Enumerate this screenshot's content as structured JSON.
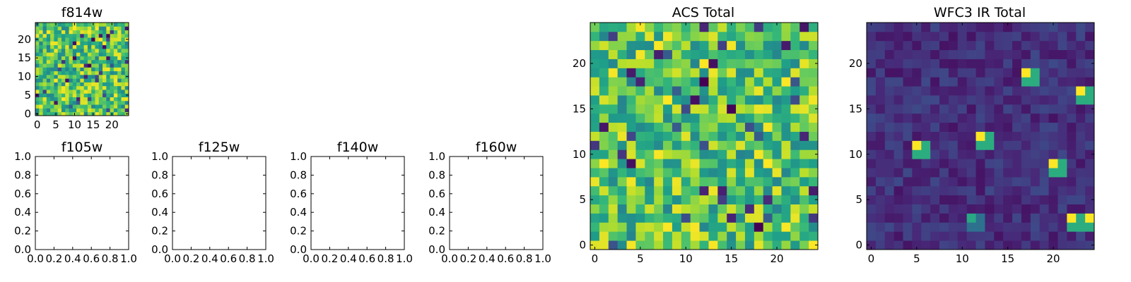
{
  "chart_data": [
    {
      "type": "heatmap",
      "title": "f814w",
      "grid_size": 25,
      "colormap": "viridis",
      "x_ticks": [
        "0",
        "5",
        "10",
        "15",
        "20"
      ],
      "y_ticks": [
        "0",
        "5",
        "10",
        "15",
        "20"
      ],
      "xlim": [
        -0.5,
        24.5
      ],
      "ylim": [
        -0.5,
        24.5
      ],
      "distribution": "uniform-random",
      "seed": 814
    },
    {
      "type": "empty",
      "title": "f105w",
      "xlim": [
        0,
        1
      ],
      "ylim": [
        0,
        1
      ],
      "x_ticks": [
        "0.0",
        "0.2",
        "0.4",
        "0.6",
        "0.8",
        "1.0"
      ],
      "y_ticks": [
        "0.0",
        "0.2",
        "0.4",
        "0.6",
        "0.8",
        "1.0"
      ]
    },
    {
      "type": "empty",
      "title": "f125w",
      "xlim": [
        0,
        1
      ],
      "ylim": [
        0,
        1
      ],
      "x_ticks": [
        "0.0",
        "0.2",
        "0.4",
        "0.6",
        "0.8",
        "1.0"
      ],
      "y_ticks": [
        "0.0",
        "0.2",
        "0.4",
        "0.6",
        "0.8",
        "1.0"
      ]
    },
    {
      "type": "empty",
      "title": "f140w",
      "xlim": [
        0,
        1
      ],
      "ylim": [
        0,
        1
      ],
      "x_ticks": [
        "0.0",
        "0.2",
        "0.4",
        "0.6",
        "0.8",
        "1.0"
      ],
      "y_ticks": [
        "0.0",
        "0.2",
        "0.4",
        "0.6",
        "0.8",
        "1.0"
      ]
    },
    {
      "type": "empty",
      "title": "f160w",
      "xlim": [
        0,
        1
      ],
      "ylim": [
        0,
        1
      ],
      "x_ticks": [
        "0.0",
        "0.2",
        "0.4",
        "0.6",
        "0.8",
        "1.0"
      ],
      "y_ticks": [
        "0.0",
        "0.2",
        "0.4",
        "0.6",
        "0.8",
        "1.0"
      ]
    },
    {
      "type": "heatmap",
      "title": "ACS Total",
      "grid_size": 25,
      "colormap": "viridis",
      "x_ticks": [
        "0",
        "5",
        "10",
        "15",
        "20"
      ],
      "y_ticks": [
        "0",
        "5",
        "10",
        "15",
        "20"
      ],
      "xlim": [
        -0.5,
        24.5
      ],
      "ylim": [
        -0.5,
        24.5
      ],
      "distribution": "uniform-random",
      "seed": 7
    },
    {
      "type": "heatmap",
      "title": "WFC3 IR Total",
      "grid_size": 25,
      "colormap": "viridis",
      "x_ticks": [
        "0",
        "5",
        "10",
        "15",
        "20"
      ],
      "y_ticks": [
        "0",
        "5",
        "10",
        "15",
        "20"
      ],
      "xlim": [
        -0.5,
        24.5
      ],
      "ylim": [
        -0.5,
        24.5
      ],
      "distribution": "low-background-with-sources",
      "seed": 160,
      "background_level": [
        0.05,
        0.22
      ],
      "bright_sources": [
        {
          "x": 5,
          "y": 11,
          "level": 1.0
        },
        {
          "x": 12,
          "y": 12,
          "level": 1.0
        },
        {
          "x": 17,
          "y": 19,
          "level": 1.0
        },
        {
          "x": 23,
          "y": 17,
          "level": 1.0
        },
        {
          "x": 20,
          "y": 9,
          "level": 1.0
        },
        {
          "x": 11,
          "y": 3,
          "level": 0.6
        },
        {
          "x": 22,
          "y": 3,
          "level": 1.0
        },
        {
          "x": 24,
          "y": 3,
          "level": 1.0
        }
      ]
    }
  ]
}
